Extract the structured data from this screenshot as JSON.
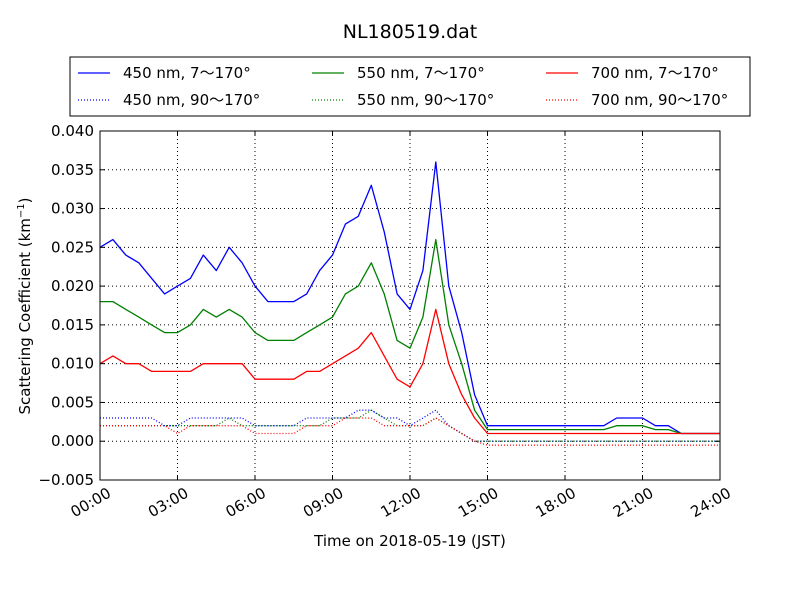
{
  "chart_data": {
    "type": "line",
    "title": "NL180519.dat",
    "xlabel": "Time on 2018-05-19 (JST)",
    "ylabel": "Scattering Coefficient (km",
    "ylabel_sup": "−1",
    "ylabel_end": ")",
    "xlim": [
      "00:00",
      "24:00"
    ],
    "ylim": [
      -0.005,
      0.04
    ],
    "grid": true,
    "legend_position": "top",
    "x_ticks": [
      "00:00",
      "03:00",
      "06:00",
      "09:00",
      "12:00",
      "15:00",
      "18:00",
      "21:00",
      "24:00"
    ],
    "y_ticks": [
      -0.005,
      0.0,
      0.005,
      0.01,
      0.015,
      0.02,
      0.025,
      0.03,
      0.035,
      0.04
    ],
    "y_tick_labels": [
      "−0.005",
      "0.000",
      "0.005",
      "0.010",
      "0.015",
      "0.020",
      "0.025",
      "0.030",
      "0.035",
      "0.040"
    ],
    "x": [
      "00:00",
      "00:30",
      "01:00",
      "01:30",
      "02:00",
      "02:30",
      "03:00",
      "03:30",
      "04:00",
      "04:30",
      "05:00",
      "05:30",
      "06:00",
      "06:30",
      "07:00",
      "07:30",
      "08:00",
      "08:30",
      "09:00",
      "09:30",
      "10:00",
      "10:30",
      "11:00",
      "11:30",
      "12:00",
      "12:30",
      "13:00",
      "13:30",
      "14:00",
      "14:30",
      "15:00",
      "15:30",
      "16:00",
      "16:30",
      "17:00",
      "17:30",
      "18:00",
      "18:30",
      "19:00",
      "19:30",
      "20:00",
      "20:30",
      "21:00",
      "21:30",
      "22:00",
      "22:30",
      "23:00",
      "23:30",
      "24:00"
    ],
    "series": [
      {
        "name": "450 nm, 7～170°",
        "color": "#0000ff",
        "style": "solid",
        "values": [
          0.025,
          0.026,
          0.024,
          0.023,
          0.021,
          0.019,
          0.02,
          0.021,
          0.024,
          0.022,
          0.025,
          0.023,
          0.02,
          0.018,
          0.018,
          0.018,
          0.019,
          0.022,
          0.024,
          0.028,
          0.029,
          0.033,
          0.027,
          0.019,
          0.017,
          0.022,
          0.036,
          0.02,
          0.014,
          0.006,
          0.002,
          0.002,
          0.002,
          0.002,
          0.002,
          0.002,
          0.002,
          0.002,
          0.002,
          0.002,
          0.003,
          0.003,
          0.003,
          0.002,
          0.002,
          0.001,
          0.001,
          0.001,
          0.001
        ]
      },
      {
        "name": "550 nm, 7～170°",
        "color": "#008000",
        "style": "solid",
        "values": [
          0.018,
          0.018,
          0.017,
          0.016,
          0.015,
          0.014,
          0.014,
          0.015,
          0.017,
          0.016,
          0.017,
          0.016,
          0.014,
          0.013,
          0.013,
          0.013,
          0.014,
          0.015,
          0.016,
          0.019,
          0.02,
          0.023,
          0.019,
          0.013,
          0.012,
          0.016,
          0.026,
          0.015,
          0.01,
          0.004,
          0.0015,
          0.0015,
          0.0015,
          0.0015,
          0.0015,
          0.0015,
          0.0015,
          0.0015,
          0.0015,
          0.0015,
          0.002,
          0.002,
          0.002,
          0.0015,
          0.0015,
          0.001,
          0.001,
          0.001,
          0.001
        ]
      },
      {
        "name": "700 nm, 7～170°",
        "color": "#ff0000",
        "style": "solid",
        "values": [
          0.01,
          0.011,
          0.01,
          0.01,
          0.009,
          0.009,
          0.009,
          0.009,
          0.01,
          0.01,
          0.01,
          0.01,
          0.008,
          0.008,
          0.008,
          0.008,
          0.009,
          0.009,
          0.01,
          0.011,
          0.012,
          0.014,
          0.011,
          0.008,
          0.007,
          0.01,
          0.017,
          0.01,
          0.006,
          0.003,
          0.001,
          0.001,
          0.001,
          0.001,
          0.001,
          0.001,
          0.001,
          0.001,
          0.001,
          0.001,
          0.001,
          0.001,
          0.001,
          0.001,
          0.001,
          0.001,
          0.001,
          0.001,
          0.001
        ]
      },
      {
        "name": "450 nm, 90～170°",
        "color": "#0000ff",
        "style": "dotted",
        "values": [
          0.003,
          0.003,
          0.003,
          0.003,
          0.003,
          0.002,
          0.002,
          0.003,
          0.003,
          0.003,
          0.003,
          0.003,
          0.002,
          0.002,
          0.002,
          0.002,
          0.003,
          0.003,
          0.003,
          0.003,
          0.004,
          0.004,
          0.003,
          0.003,
          0.002,
          0.003,
          0.004,
          0.002,
          0.001,
          0.0,
          0.0,
          0.0,
          0.0,
          0.0,
          0.0,
          0.0,
          0.0,
          0.0,
          0.0,
          0.0,
          0.0,
          0.0,
          0.0,
          0.0,
          0.0,
          0.0,
          0.0,
          0.0,
          0.0
        ]
      },
      {
        "name": "550 nm, 90～170°",
        "color": "#008000",
        "style": "dotted",
        "values": [
          0.002,
          0.002,
          0.002,
          0.002,
          0.002,
          0.002,
          0.002,
          0.002,
          0.002,
          0.002,
          0.003,
          0.002,
          0.002,
          0.002,
          0.002,
          0.002,
          0.002,
          0.002,
          0.003,
          0.003,
          0.003,
          0.004,
          0.003,
          0.002,
          0.002,
          0.002,
          0.003,
          0.002,
          0.001,
          0.0,
          0.0,
          0.0,
          0.0,
          0.0,
          0.0,
          0.0,
          0.0,
          0.0,
          0.0,
          0.0,
          0.0,
          0.0,
          0.0,
          0.0,
          0.0,
          0.0,
          0.0,
          0.0,
          0.0
        ]
      },
      {
        "name": "700 nm, 90～170°",
        "color": "#ff0000",
        "style": "dotted",
        "values": [
          0.002,
          0.002,
          0.002,
          0.002,
          0.002,
          0.002,
          0.001,
          0.002,
          0.002,
          0.002,
          0.002,
          0.002,
          0.001,
          0.001,
          0.001,
          0.001,
          0.002,
          0.002,
          0.002,
          0.003,
          0.003,
          0.003,
          0.002,
          0.002,
          0.002,
          0.002,
          0.003,
          0.002,
          0.001,
          0.0,
          -0.0005,
          -0.0005,
          -0.0005,
          -0.0005,
          -0.0005,
          -0.0005,
          -0.0005,
          -0.0005,
          -0.0005,
          -0.0005,
          -0.0005,
          -0.0005,
          -0.0005,
          -0.0005,
          -0.0005,
          -0.0005,
          -0.0005,
          -0.0005,
          -0.0005
        ]
      }
    ]
  }
}
